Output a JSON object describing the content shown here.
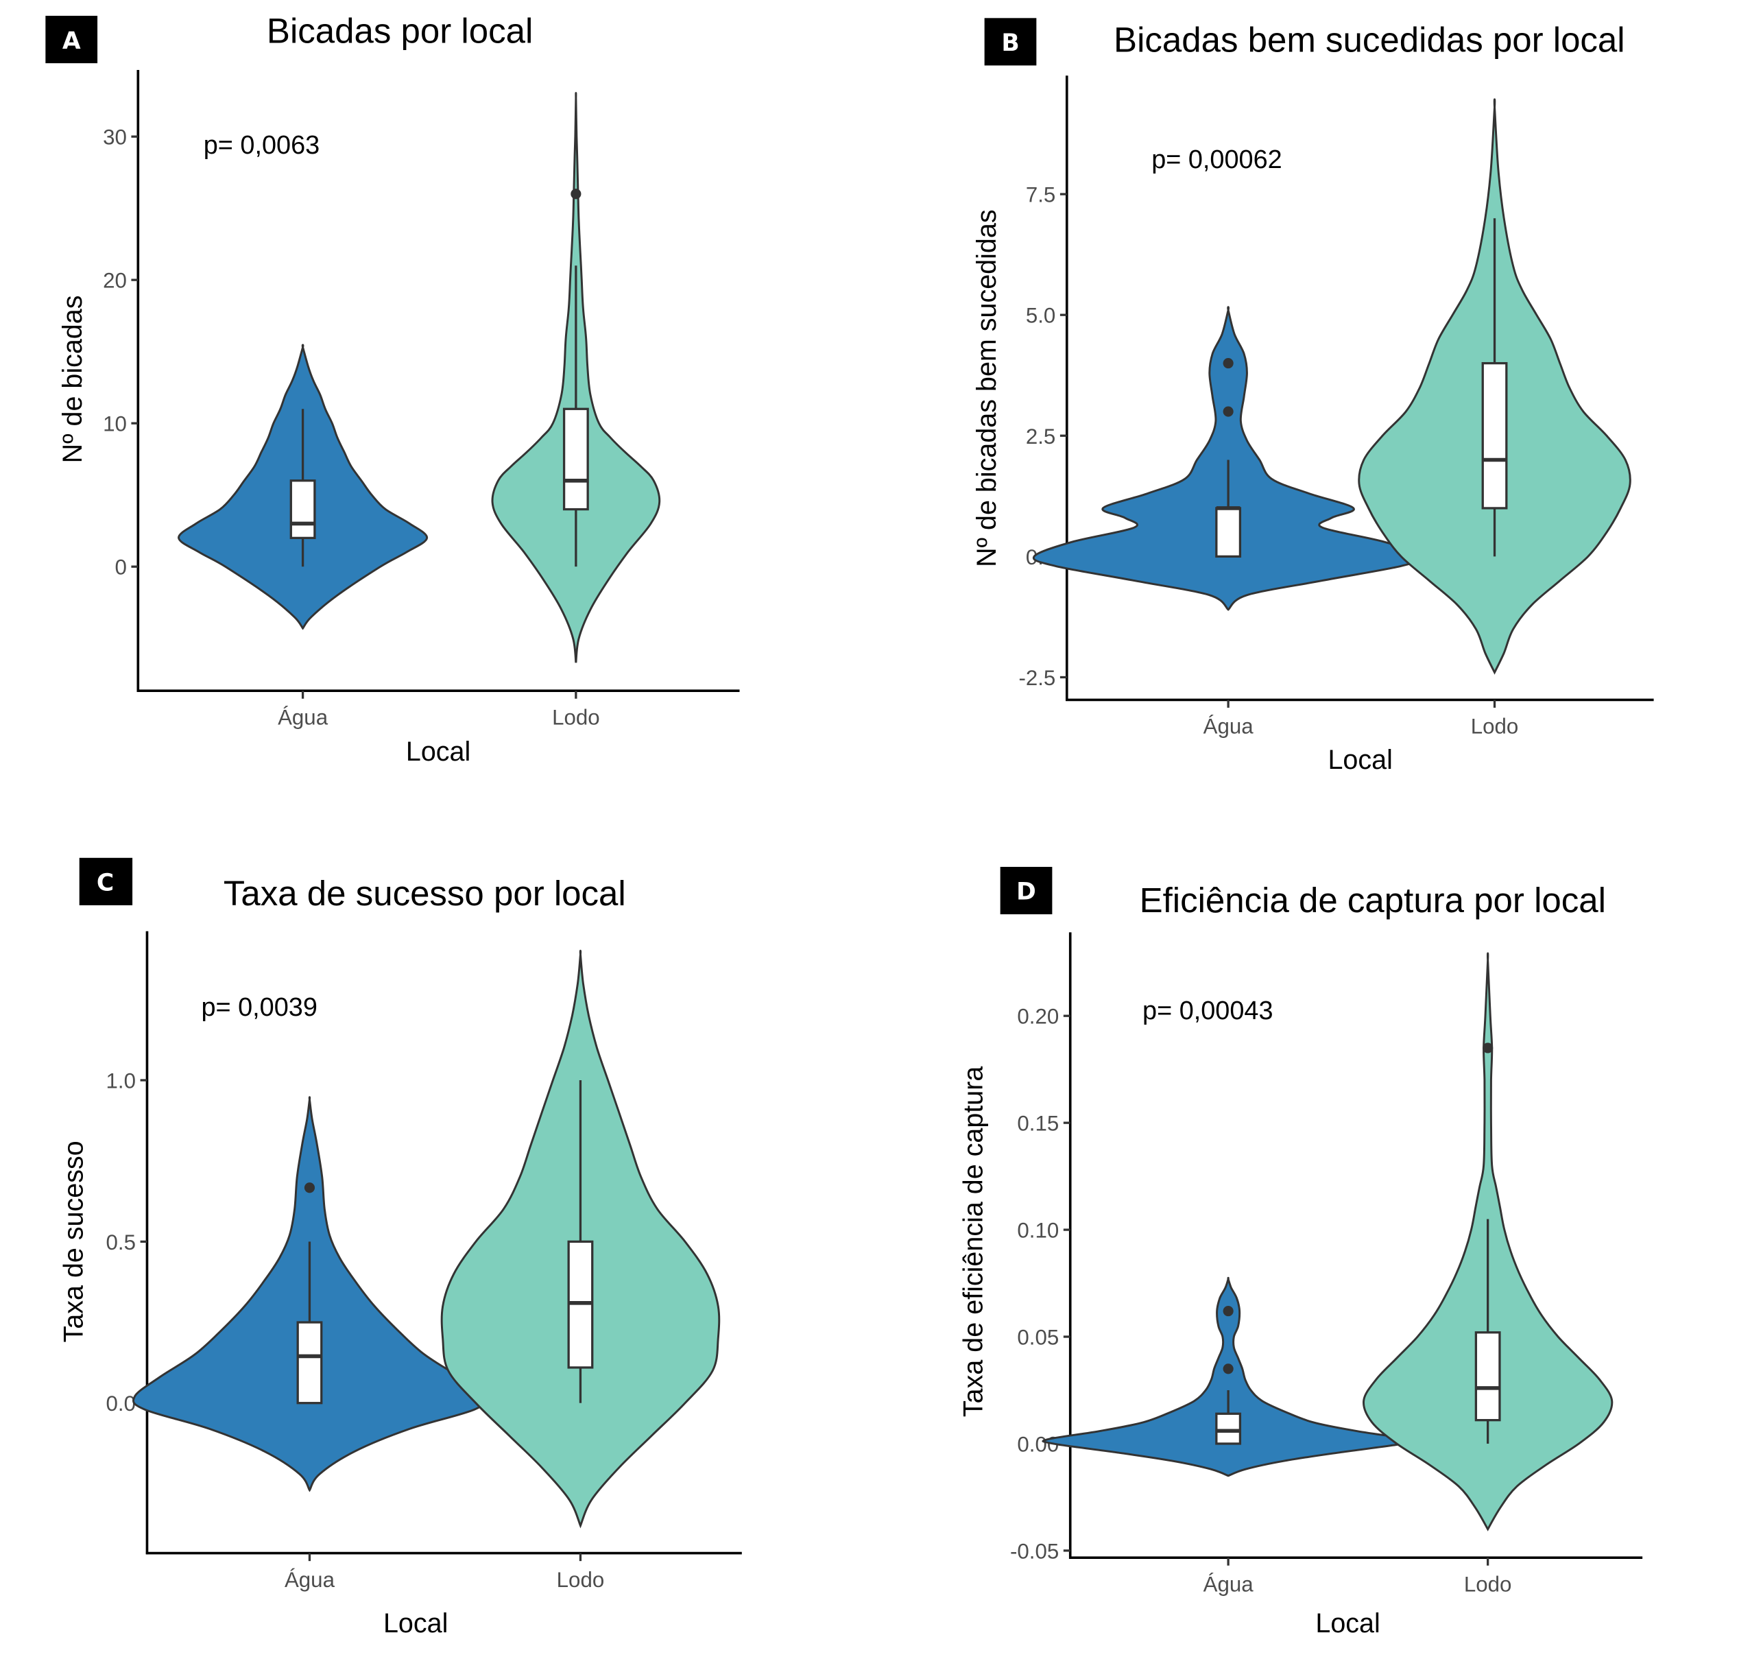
{
  "figure": {
    "colors": {
      "agua": "#2E7EB8",
      "lodo": "#7FCFBC",
      "outline": "#333333"
    }
  },
  "chart_data": [
    {
      "panel": "A",
      "type": "violin",
      "title": "Bicadas por local",
      "xlabel": "Local",
      "ylabel": "Nº de bicadas",
      "annotation": "p= 0,0063",
      "categories": [
        "Água",
        "Lodo"
      ],
      "yticks": [
        0,
        10,
        20,
        30
      ],
      "ytick_labels": [
        "0",
        "10",
        "20",
        "30"
      ],
      "ylim": [
        -8.6,
        34.8
      ],
      "grid": false,
      "series": [
        {
          "name": "Água",
          "box": {
            "min": 0,
            "q1": 2,
            "median": 3,
            "q3": 6,
            "max": 11
          },
          "outliers": [],
          "violin_range": [
            -4.3,
            15.3
          ],
          "density": [
            [
              -4.3,
              0
            ],
            [
              -3.5,
              0.05
            ],
            [
              -2,
              0.2
            ],
            [
              0,
              0.45
            ],
            [
              1,
              0.6
            ],
            [
              2,
              0.72
            ],
            [
              3,
              0.62
            ],
            [
              4,
              0.48
            ],
            [
              5,
              0.4
            ],
            [
              6,
              0.34
            ],
            [
              7,
              0.28
            ],
            [
              8,
              0.24
            ],
            [
              9,
              0.2
            ],
            [
              10,
              0.17
            ],
            [
              11,
              0.13
            ],
            [
              12,
              0.1
            ],
            [
              13,
              0.06
            ],
            [
              14,
              0.03
            ],
            [
              15.3,
              0
            ]
          ]
        },
        {
          "name": "Lodo",
          "box": {
            "min": 0,
            "q1": 4,
            "median": 6,
            "q3": 11,
            "max": 21
          },
          "outliers": [
            26
          ],
          "violin_range": [
            -6.7,
            32.7
          ],
          "density": [
            [
              -6.7,
              0
            ],
            [
              -5,
              0.02
            ],
            [
              -3,
              0.1
            ],
            [
              -1,
              0.22
            ],
            [
              1,
              0.36
            ],
            [
              3,
              0.52
            ],
            [
              4.5,
              0.58
            ],
            [
              6,
              0.54
            ],
            [
              7,
              0.45
            ],
            [
              8,
              0.34
            ],
            [
              9,
              0.24
            ],
            [
              10,
              0.16
            ],
            [
              12,
              0.1
            ],
            [
              14,
              0.08
            ],
            [
              16,
              0.07
            ],
            [
              18,
              0.05
            ],
            [
              20,
              0.04
            ],
            [
              22,
              0.03
            ],
            [
              24,
              0.02
            ],
            [
              26,
              0.015
            ],
            [
              28,
              0.01
            ],
            [
              30,
              0.005
            ],
            [
              32.7,
              0
            ]
          ]
        }
      ]
    },
    {
      "panel": "B",
      "type": "violin",
      "title": "Bicadas bem sucedidas por local",
      "xlabel": "Local",
      "ylabel": "Nº de bicadas bem sucedidas",
      "annotation": "p= 0,00062",
      "categories": [
        "Água",
        "Lodo"
      ],
      "yticks": [
        -2.5,
        0.0,
        2.5,
        5.0,
        7.5
      ],
      "ytick_labels": [
        "-2.5",
        "0.0",
        "2.5",
        "5.0",
        "7.5"
      ],
      "ylim": [
        -2.8,
        9.9
      ],
      "grid": false,
      "series": [
        {
          "name": "Água",
          "box": {
            "min": 0,
            "q1": 0,
            "median": 1,
            "q3": 1,
            "max": 2
          },
          "outliers": [
            3,
            4
          ],
          "violin_range": [
            -1.1,
            5.1
          ],
          "density": [
            [
              -1.1,
              0
            ],
            [
              -0.8,
              0.06
            ],
            [
              -0.5,
              0.3
            ],
            [
              -0.2,
              0.55
            ],
            [
              0,
              0.62
            ],
            [
              0.3,
              0.5
            ],
            [
              0.6,
              0.3
            ],
            [
              0.8,
              0.33
            ],
            [
              1,
              0.4
            ],
            [
              1.3,
              0.26
            ],
            [
              1.6,
              0.14
            ],
            [
              2,
              0.1
            ],
            [
              2.4,
              0.06
            ],
            [
              2.8,
              0.04
            ],
            [
              3.3,
              0.05
            ],
            [
              3.8,
              0.06
            ],
            [
              4.2,
              0.05
            ],
            [
              4.6,
              0.02
            ],
            [
              5.1,
              0
            ]
          ]
        },
        {
          "name": "Lodo",
          "box": {
            "min": 0,
            "q1": 1,
            "median": 2,
            "q3": 4,
            "max": 7
          },
          "outliers": [],
          "violin_range": [
            -2.4,
            9.3
          ],
          "density": [
            [
              -2.4,
              0
            ],
            [
              -2,
              0.02
            ],
            [
              -1.5,
              0.04
            ],
            [
              -1,
              0.08
            ],
            [
              -0.5,
              0.14
            ],
            [
              0,
              0.2
            ],
            [
              0.5,
              0.24
            ],
            [
              1,
              0.27
            ],
            [
              1.5,
              0.29
            ],
            [
              2,
              0.28
            ],
            [
              2.5,
              0.24
            ],
            [
              3,
              0.19
            ],
            [
              3.5,
              0.16
            ],
            [
              4,
              0.14
            ],
            [
              4.5,
              0.12
            ],
            [
              5,
              0.09
            ],
            [
              5.5,
              0.06
            ],
            [
              6,
              0.04
            ],
            [
              7,
              0.02
            ],
            [
              8,
              0.008
            ],
            [
              9.3,
              0
            ]
          ]
        }
      ]
    },
    {
      "panel": "C",
      "type": "violin",
      "title": "Taxa de sucesso por local",
      "xlabel": "Local",
      "ylabel": "Taxa de sucesso",
      "annotation": "p= 0,0039",
      "categories": [
        "Água",
        "Lodo"
      ],
      "yticks": [
        0.0,
        0.5,
        1.0
      ],
      "ytick_labels": [
        "0.0",
        "0.5",
        "1.0"
      ],
      "ylim": [
        -0.46,
        1.46
      ],
      "grid": false,
      "series": [
        {
          "name": "Água",
          "box": {
            "min": 0,
            "q1": 0,
            "median": 0.145,
            "q3": 0.25,
            "max": 0.5
          },
          "outliers": [
            0.667
          ],
          "violin_range": [
            -0.27,
            0.94
          ],
          "density": [
            [
              -0.27,
              0
            ],
            [
              -0.22,
              0.04
            ],
            [
              -0.15,
              0.18
            ],
            [
              -0.08,
              0.4
            ],
            [
              -0.02,
              0.66
            ],
            [
              0.02,
              0.7
            ],
            [
              0.08,
              0.6
            ],
            [
              0.15,
              0.46
            ],
            [
              0.22,
              0.36
            ],
            [
              0.3,
              0.26
            ],
            [
              0.38,
              0.18
            ],
            [
              0.45,
              0.12
            ],
            [
              0.52,
              0.08
            ],
            [
              0.6,
              0.06
            ],
            [
              0.7,
              0.05
            ],
            [
              0.8,
              0.03
            ],
            [
              0.88,
              0.01
            ],
            [
              0.94,
              0
            ]
          ]
        },
        {
          "name": "Lodo",
          "box": {
            "min": 0,
            "q1": 0.11,
            "median": 0.31,
            "q3": 0.5,
            "max": 1.0
          },
          "outliers": [],
          "violin_range": [
            -0.38,
            1.39
          ],
          "density": [
            [
              -0.38,
              0
            ],
            [
              -0.3,
              0.04
            ],
            [
              -0.2,
              0.14
            ],
            [
              -0.1,
              0.26
            ],
            [
              0,
              0.38
            ],
            [
              0.1,
              0.48
            ],
            [
              0.2,
              0.5
            ],
            [
              0.3,
              0.5
            ],
            [
              0.4,
              0.46
            ],
            [
              0.5,
              0.38
            ],
            [
              0.6,
              0.28
            ],
            [
              0.7,
              0.22
            ],
            [
              0.8,
              0.18
            ],
            [
              0.9,
              0.14
            ],
            [
              1.0,
              0.1
            ],
            [
              1.1,
              0.06
            ],
            [
              1.2,
              0.03
            ],
            [
              1.3,
              0.01
            ],
            [
              1.39,
              0
            ]
          ]
        }
      ]
    },
    {
      "panel": "D",
      "type": "violin",
      "title": "Eficiência de captura por local",
      "xlabel": "Local",
      "ylabel": "Taxa de eficiência de captura",
      "annotation": "p= 0,00043",
      "categories": [
        "Água",
        "Lodo"
      ],
      "yticks": [
        -0.05,
        0.0,
        0.05,
        0.1,
        0.15,
        0.2
      ],
      "ytick_labels": [
        "-0.05",
        "0.00",
        "0.05",
        "0.10",
        "0.15",
        "0.20"
      ],
      "ylim": [
        -0.054,
        0.243
      ],
      "grid": false,
      "series": [
        {
          "name": "Água",
          "box": {
            "min": 0,
            "q1": 0,
            "median": 0.006,
            "q3": 0.014,
            "max": 0.025
          },
          "outliers": [
            0.035,
            0.062
          ],
          "violin_range": [
            -0.015,
            0.077
          ],
          "density": [
            [
              -0.015,
              0
            ],
            [
              -0.012,
              0.06
            ],
            [
              -0.008,
              0.2
            ],
            [
              -0.004,
              0.4
            ],
            [
              0,
              0.62
            ],
            [
              0.002,
              0.64
            ],
            [
              0.006,
              0.45
            ],
            [
              0.01,
              0.3
            ],
            [
              0.015,
              0.2
            ],
            [
              0.02,
              0.12
            ],
            [
              0.025,
              0.08
            ],
            [
              0.03,
              0.06
            ],
            [
              0.035,
              0.05
            ],
            [
              0.04,
              0.035
            ],
            [
              0.045,
              0.02
            ],
            [
              0.05,
              0.02
            ],
            [
              0.055,
              0.035
            ],
            [
              0.062,
              0.04
            ],
            [
              0.068,
              0.03
            ],
            [
              0.073,
              0.01
            ],
            [
              0.077,
              0
            ]
          ]
        },
        {
          "name": "Lodo",
          "box": {
            "min": 0,
            "q1": 0.011,
            "median": 0.026,
            "q3": 0.052,
            "max": 0.105
          },
          "outliers": [
            0.185
          ],
          "violin_range": [
            -0.04,
            0.226
          ],
          "density": [
            [
              -0.04,
              0
            ],
            [
              -0.03,
              0.03
            ],
            [
              -0.02,
              0.07
            ],
            [
              -0.01,
              0.14
            ],
            [
              0,
              0.22
            ],
            [
              0.01,
              0.28
            ],
            [
              0.02,
              0.3
            ],
            [
              0.03,
              0.27
            ],
            [
              0.04,
              0.22
            ],
            [
              0.05,
              0.17
            ],
            [
              0.06,
              0.13
            ],
            [
              0.07,
              0.1
            ],
            [
              0.08,
              0.075
            ],
            [
              0.09,
              0.055
            ],
            [
              0.1,
              0.04
            ],
            [
              0.11,
              0.03
            ],
            [
              0.12,
              0.02
            ],
            [
              0.13,
              0.01
            ],
            [
              0.15,
              0.008
            ],
            [
              0.17,
              0.008
            ],
            [
              0.185,
              0.01
            ],
            [
              0.2,
              0.006
            ],
            [
              0.226,
              0
            ]
          ]
        }
      ]
    }
  ]
}
